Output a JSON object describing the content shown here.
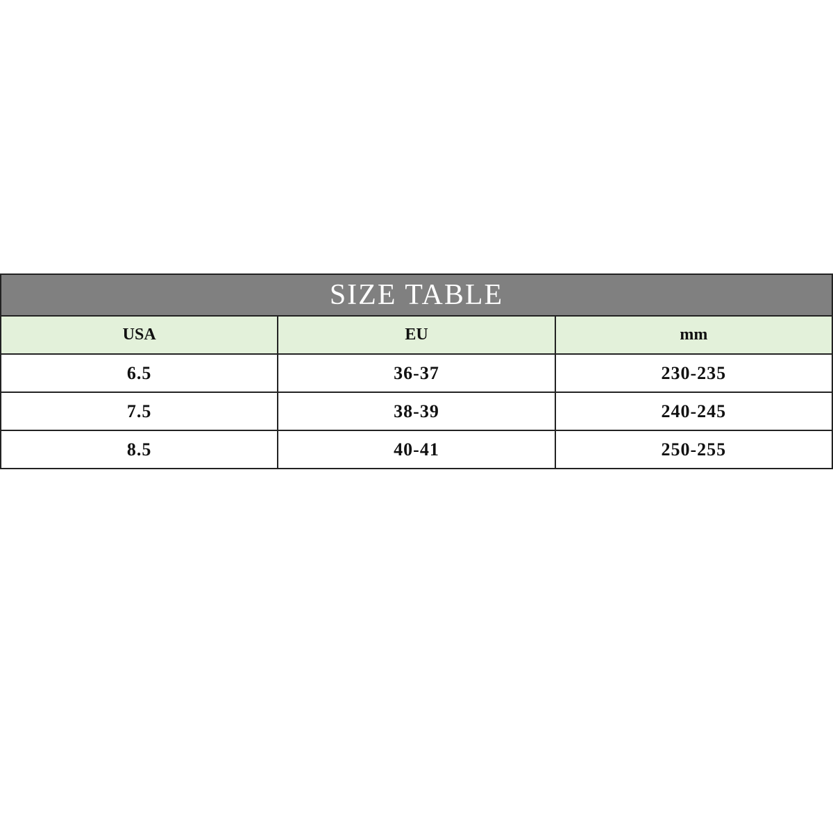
{
  "title": "SIZE TABLE",
  "columns": [
    "USA",
    "EU",
    "mm"
  ],
  "rows": [
    [
      "6.5",
      "36-37",
      "230-235"
    ],
    [
      "7.5",
      "38-39",
      "240-245"
    ],
    [
      "8.5",
      "40-41",
      "250-255"
    ]
  ],
  "colors": {
    "title_bg": "#808080",
    "header_bg": "#e3f1da"
  }
}
